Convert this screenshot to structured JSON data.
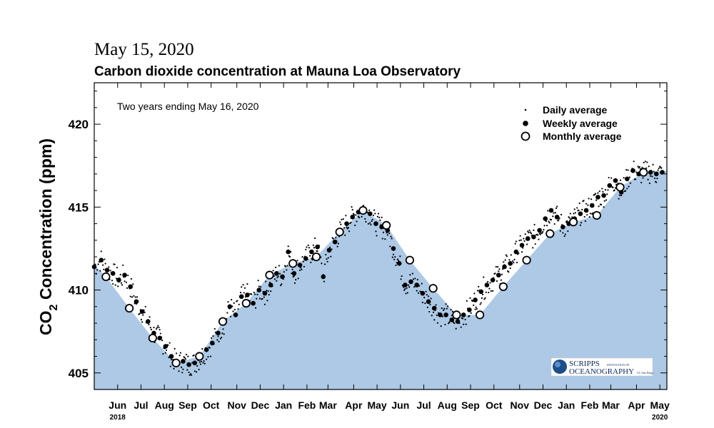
{
  "header": {
    "date": "May 15, 2020",
    "title": "Carbon dioxide concentration at Mauna Loa Observatory"
  },
  "logo": {
    "line1": "SCRIPPS",
    "line1_small": "INSTITUTION OF",
    "line2": "OCEANOGRAPHY",
    "line2_small": "UC San Diego"
  },
  "colors": {
    "fill": "#adc9e6",
    "marker": "#000000"
  },
  "chart_data": {
    "type": "scatter",
    "title": "Carbon dioxide concentration at Mauna Loa Observatory",
    "subtitle": "Two years ending May 16, 2020",
    "ylabel_main": "CO",
    "ylabel_sub": "2",
    "ylabel_rest": " Concentration (ppm)",
    "ylim": [
      404,
      422.5
    ],
    "yticks": [
      405,
      410,
      415,
      420
    ],
    "xlim": [
      0,
      24.5
    ],
    "month_ticks": [
      {
        "label": "Jun",
        "x": 1.0
      },
      {
        "label": "Jul",
        "x": 2.0
      },
      {
        "label": "Aug",
        "x": 3.0
      },
      {
        "label": "Sep",
        "x": 4.0
      },
      {
        "label": "Oct",
        "x": 5.0
      },
      {
        "label": "Nov",
        "x": 6.1
      },
      {
        "label": "Dec",
        "x": 7.1
      },
      {
        "label": "Jan",
        "x": 8.1
      },
      {
        "label": "Feb",
        "x": 9.1
      },
      {
        "label": "Mar",
        "x": 10.0
      },
      {
        "label": "Apr",
        "x": 11.1
      },
      {
        "label": "May",
        "x": 12.1
      },
      {
        "label": "Jun",
        "x": 13.1
      },
      {
        "label": "Jul",
        "x": 14.1
      },
      {
        "label": "Aug",
        "x": 15.1
      },
      {
        "label": "Sep",
        "x": 16.1
      },
      {
        "label": "Oct",
        "x": 17.1
      },
      {
        "label": "Nov",
        "x": 18.2
      },
      {
        "label": "Dec",
        "x": 19.2
      },
      {
        "label": "Jan",
        "x": 20.2
      },
      {
        "label": "Feb",
        "x": 21.2
      },
      {
        "label": "Mar",
        "x": 22.1
      },
      {
        "label": "Apr",
        "x": 23.2
      },
      {
        "label": "May",
        "x": 24.2
      }
    ],
    "year_labels": [
      {
        "label": "2018",
        "x": 1.0
      },
      {
        "label": "2020",
        "x": 24.2
      }
    ],
    "legend": {
      "placement": "top-right",
      "entries": [
        {
          "label": "Daily average",
          "marker": "dot"
        },
        {
          "label": "Weekly average",
          "marker": "filled-circle"
        },
        {
          "label": "Monthly average",
          "marker": "open-circle"
        }
      ]
    },
    "series": [
      {
        "name": "Monthly average",
        "x": [
          0.5,
          1.5,
          2.5,
          3.5,
          4.5,
          5.5,
          6.5,
          7.5,
          8.5,
          9.5,
          10.5,
          11.5,
          12.5,
          13.5,
          14.5,
          15.5,
          16.5,
          17.5,
          18.5,
          19.5,
          20.5,
          21.5,
          22.5,
          23.5
        ],
        "y": [
          410.8,
          408.9,
          407.1,
          405.6,
          406.0,
          408.1,
          409.2,
          410.9,
          411.6,
          412.0,
          413.5,
          414.8,
          413.9,
          411.8,
          410.1,
          408.5,
          408.5,
          410.2,
          411.8,
          413.4,
          414.1,
          414.5,
          416.2,
          417.1
        ]
      },
      {
        "name": "Weekly average",
        "x": [
          0.0,
          0.3,
          0.55,
          0.8,
          1.05,
          1.3,
          1.55,
          1.8,
          2.05,
          2.3,
          2.55,
          2.8,
          3.05,
          3.3,
          3.55,
          3.8,
          4.05,
          4.3,
          4.55,
          4.8,
          5.05,
          5.3,
          5.55,
          5.8,
          6.05,
          6.3,
          6.55,
          6.8,
          7.05,
          7.3,
          7.55,
          7.8,
          8.05,
          8.3,
          8.55,
          8.8,
          9.05,
          9.3,
          9.55,
          9.8,
          10.05,
          10.3,
          10.55,
          10.8,
          11.05,
          11.3,
          11.55,
          11.8,
          12.05,
          12.3,
          12.55,
          12.8,
          13.05,
          13.3,
          13.55,
          13.8,
          14.05,
          14.3,
          14.55,
          14.8,
          15.05,
          15.3,
          15.55,
          15.8,
          16.05,
          16.3,
          16.55,
          16.8,
          17.05,
          17.3,
          17.55,
          17.8,
          18.05,
          18.3,
          18.55,
          18.8,
          19.05,
          19.3,
          19.55,
          19.8,
          20.05,
          20.3,
          20.55,
          20.8,
          21.05,
          21.3,
          21.55,
          21.8,
          22.05,
          22.3,
          22.55,
          22.8,
          23.05,
          23.3,
          23.55,
          23.8,
          24.05,
          24.3
        ],
        "y": [
          411.4,
          411.8,
          411.2,
          411.0,
          410.6,
          410.9,
          410.2,
          409.3,
          408.7,
          408.1,
          407.4,
          407.1,
          406.6,
          406.0,
          405.6,
          405.7,
          405.5,
          405.6,
          405.9,
          406.4,
          406.8,
          407.4,
          408.0,
          409.0,
          408.5,
          409.6,
          409.7,
          409.2,
          410.0,
          409.8,
          410.3,
          411.0,
          410.8,
          412.3,
          411.0,
          411.5,
          411.9,
          412.3,
          412.6,
          410.8,
          412.4,
          412.9,
          413.6,
          414.0,
          414.4,
          414.7,
          414.9,
          414.6,
          414.0,
          413.8,
          413.6,
          412.5,
          411.6,
          410.3,
          410.5,
          410.3,
          409.8,
          409.3,
          408.9,
          408.5,
          408.5,
          408.2,
          408.1,
          408.5,
          408.8,
          409.4,
          409.9,
          410.3,
          410.6,
          410.9,
          411.4,
          411.6,
          412.3,
          412.7,
          413.1,
          413.2,
          413.6,
          414.3,
          414.8,
          414.4,
          413.8,
          414.0,
          414.3,
          414.6,
          414.8,
          415.1,
          415.6,
          415.7,
          416.3,
          416.6,
          415.9,
          416.7,
          417.2,
          417.0,
          417.1,
          417.1,
          417.0,
          417.1
        ]
      }
    ]
  }
}
